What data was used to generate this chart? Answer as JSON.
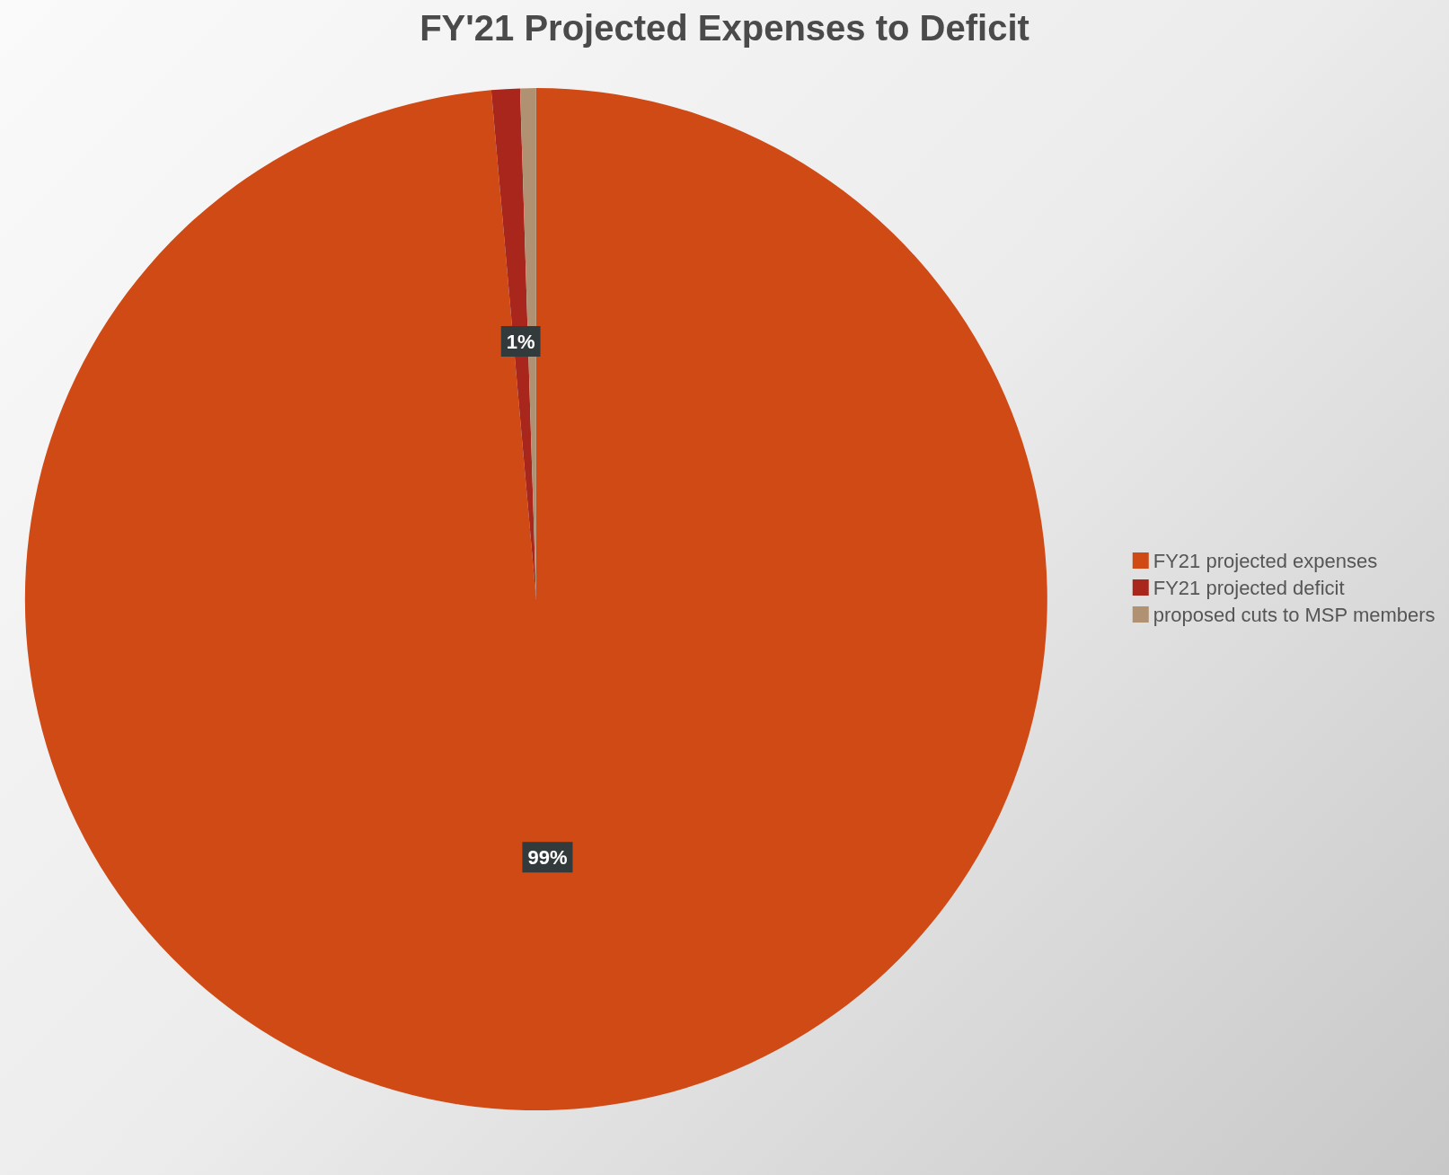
{
  "chart_data": {
    "type": "pie",
    "title": "FY'21 Projected Expenses to Deficit",
    "categories": [
      "FY21 projected expenses",
      "FY21 projected deficit",
      "proposed cuts to MSP members"
    ],
    "values": [
      98.6,
      0.9,
      0.5
    ],
    "colors": [
      "#d04a16",
      "#a8261b",
      "#b09272"
    ],
    "value_labels": [
      "99%",
      "1%",
      null
    ],
    "legend": "right"
  }
}
